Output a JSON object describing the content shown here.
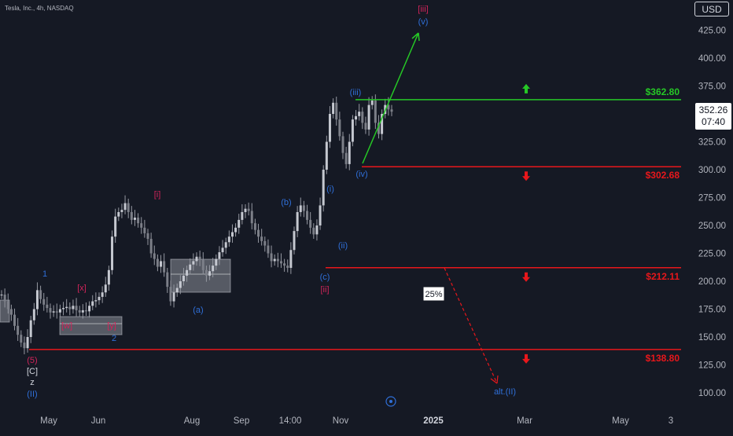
{
  "symbol_title": "Tesla, Inc., 4h, NASDAQ",
  "currency": "USD",
  "last_price": "352.26",
  "countdown": "07:40",
  "colors": {
    "background": "#151924",
    "axis_text": "#b2b5be",
    "candle": "#9598a1",
    "green_level": "#26c826",
    "red_level": "#e8171b",
    "wave_blue": "#2f6fd8",
    "wave_crimson": "#d0245a",
    "zone_fill": "#d1d4dc"
  },
  "chart_data": {
    "type": "line",
    "title": "",
    "xlabel": "",
    "ylabel": "",
    "ylim": [
      88,
      435
    ],
    "y_ticks": [
      "425.00",
      "400.00",
      "375.00",
      "350.00",
      "325.00",
      "300.00",
      "275.00",
      "250.00",
      "225.00",
      "200.00",
      "175.00",
      "150.00",
      "125.00",
      "100.00"
    ],
    "x_ticks": [
      "May",
      "Jun",
      "Aug",
      "Sep",
      "14:00",
      "Nov",
      "2025",
      "Mar",
      "May",
      "3"
    ],
    "series": [
      {
        "values": [
          188,
          182,
          175,
          170,
          160,
          152,
          145,
          140,
          150,
          165,
          175,
          192,
          184,
          179,
          176,
          172,
          173,
          172,
          175,
          176,
          177,
          175,
          178,
          174,
          172,
          174,
          173,
          178,
          182,
          183,
          186,
          190,
          197,
          210,
          240,
          258,
          262,
          264,
          270,
          262,
          255,
          257,
          252,
          248,
          243,
          238,
          225,
          220,
          213,
          218,
          208,
          195,
          182,
          190,
          194,
          200,
          205,
          210,
          215,
          218,
          222,
          219,
          210,
          205,
          209,
          214,
          220,
          226,
          230,
          235,
          240,
          244,
          248,
          255,
          262,
          265,
          263,
          252,
          246,
          240,
          236,
          232,
          225,
          218,
          220,
          218,
          216,
          214,
          212,
          228,
          245,
          262,
          268,
          263,
          255,
          248,
          242,
          250,
          268,
          300,
          325,
          350,
          360,
          345,
          330,
          315,
          305,
          325,
          345,
          348,
          352,
          342,
          336,
          358,
          362,
          342,
          332,
          350,
          358,
          354,
          352
        ]
      }
    ],
    "levels": [
      {
        "label": "$362.80",
        "value": 362.8,
        "color": "green",
        "arrow": "up"
      },
      {
        "label": "$302.68",
        "value": 302.68,
        "color": "red",
        "arrow": "down"
      },
      {
        "label": "$212.11",
        "value": 212.11,
        "color": "red",
        "arrow": "down"
      },
      {
        "label": "$138.80",
        "value": 138.8,
        "color": "red",
        "arrow": "down"
      }
    ],
    "wave_labels": [
      {
        "text": "[iii]",
        "color": "crimson"
      },
      {
        "text": "(v)",
        "color": "blue"
      },
      {
        "text": "(iii)",
        "color": "blue"
      },
      {
        "text": "(iv)",
        "color": "blue"
      },
      {
        "text": "(i)",
        "color": "blue"
      },
      {
        "text": "(ii)",
        "color": "blue"
      },
      {
        "text": "(c)",
        "color": "blue"
      },
      {
        "text": "[ii]",
        "color": "crimson"
      },
      {
        "text": "(b)",
        "color": "blue"
      },
      {
        "text": "(a)",
        "color": "blue"
      },
      {
        "text": "[i]",
        "color": "crimson"
      },
      {
        "text": "1",
        "color": "blue"
      },
      {
        "text": "[x]",
        "color": "crimson"
      },
      {
        "text": "[w]",
        "color": "crimson"
      },
      {
        "text": "[y]",
        "color": "crimson"
      },
      {
        "text": "2",
        "color": "blue"
      },
      {
        "text": "(5)",
        "color": "crimson"
      },
      {
        "text": "[C]",
        "color": "white"
      },
      {
        "text": "z",
        "color": "white"
      },
      {
        "text": "(II)",
        "color": "blue"
      },
      {
        "text": "alt.(II)",
        "color": "blue"
      }
    ],
    "probability_box": "25%"
  }
}
